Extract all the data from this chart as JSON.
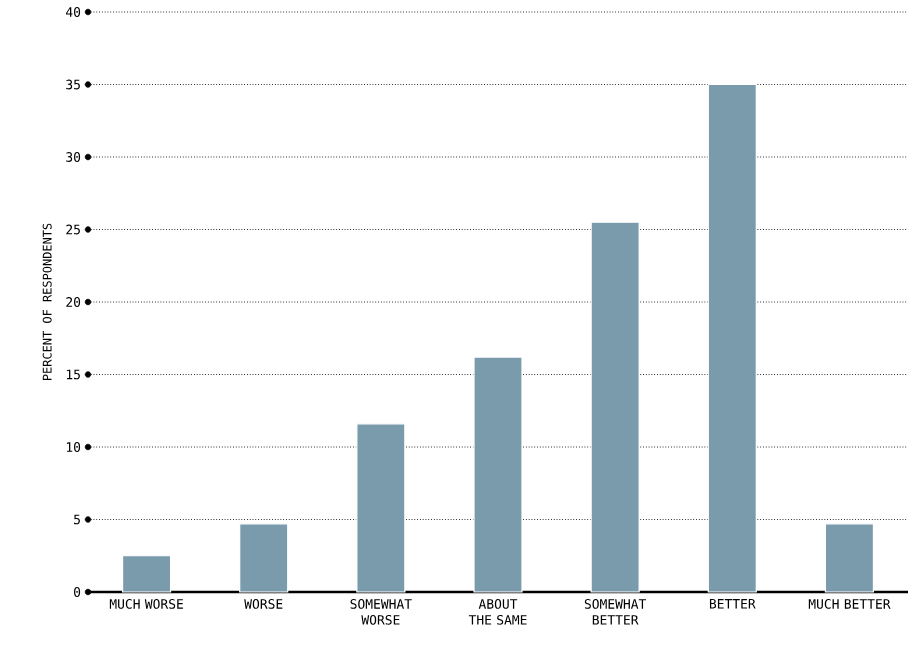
{
  "chart_data": {
    "type": "bar",
    "ylabel": "PERCENT OF RESPONDENTS",
    "categories": [
      "MUCH WORSE",
      "WORSE",
      "SOMEWHAT WORSE",
      "ABOUT THE SAME",
      "SOMEWHAT BETTER",
      "BETTER",
      "MUCH BETTER"
    ],
    "values": [
      2.5,
      4.7,
      11.6,
      16.2,
      25.5,
      35.0,
      4.7
    ],
    "color": "#7a9bab",
    "ylim": [
      0,
      40
    ],
    "yticks": [
      0,
      5,
      10,
      15,
      20,
      25,
      30,
      35,
      40
    ],
    "grid": "y"
  }
}
